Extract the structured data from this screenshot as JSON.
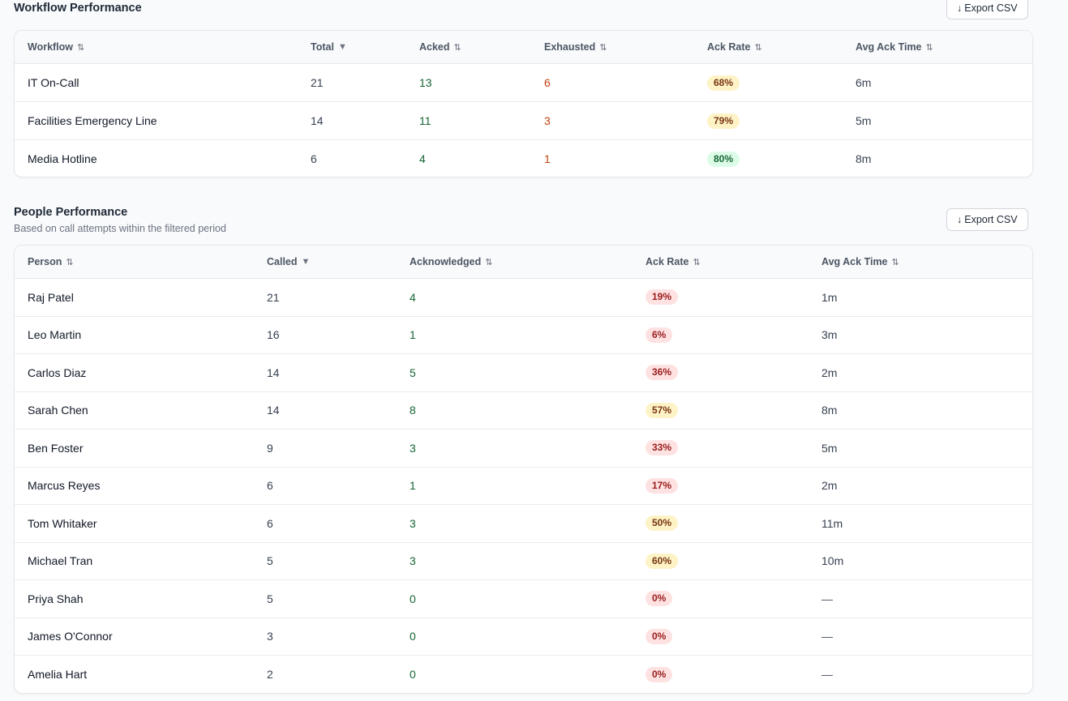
{
  "workflow": {
    "title": "Workflow Performance",
    "export_label": "Export CSV",
    "export_icon": "arrow-down-icon",
    "columns": [
      {
        "label": "Workflow",
        "sort": "⇅"
      },
      {
        "label": "Total",
        "sort": "▼"
      },
      {
        "label": "Acked",
        "sort": "⇅"
      },
      {
        "label": "Exhausted",
        "sort": "⇅"
      },
      {
        "label": "Ack Rate",
        "sort": "⇅"
      },
      {
        "label": "Avg Ack Time",
        "sort": "⇅"
      }
    ],
    "rows": [
      {
        "name": "IT On-Call",
        "total": "21",
        "acked": "13",
        "exhausted": "6",
        "rate": "68%",
        "rate_level": "yellow",
        "avg": "6m"
      },
      {
        "name": "Facilities Emergency Line",
        "total": "14",
        "acked": "11",
        "exhausted": "3",
        "rate": "79%",
        "rate_level": "yellow",
        "avg": "5m"
      },
      {
        "name": "Media Hotline",
        "total": "6",
        "acked": "4",
        "exhausted": "1",
        "rate": "80%",
        "rate_level": "green",
        "avg": "8m"
      }
    ]
  },
  "people": {
    "title": "People Performance",
    "subtitle": "Based on call attempts within the filtered period",
    "export_label": "Export CSV",
    "export_icon": "arrow-down-icon",
    "columns": [
      {
        "label": "Person",
        "sort": "⇅"
      },
      {
        "label": "Called",
        "sort": "▼"
      },
      {
        "label": "Acknowledged",
        "sort": "⇅"
      },
      {
        "label": "Ack Rate",
        "sort": "⇅"
      },
      {
        "label": "Avg Ack Time",
        "sort": "⇅"
      }
    ],
    "rows": [
      {
        "name": "Raj Patel",
        "called": "21",
        "ack": "4",
        "rate": "19%",
        "rate_level": "red",
        "avg": "1m"
      },
      {
        "name": "Leo Martin",
        "called": "16",
        "ack": "1",
        "rate": "6%",
        "rate_level": "red",
        "avg": "3m"
      },
      {
        "name": "Carlos Diaz",
        "called": "14",
        "ack": "5",
        "rate": "36%",
        "rate_level": "red",
        "avg": "2m"
      },
      {
        "name": "Sarah Chen",
        "called": "14",
        "ack": "8",
        "rate": "57%",
        "rate_level": "yellow",
        "avg": "8m"
      },
      {
        "name": "Ben Foster",
        "called": "9",
        "ack": "3",
        "rate": "33%",
        "rate_level": "red",
        "avg": "5m"
      },
      {
        "name": "Marcus Reyes",
        "called": "6",
        "ack": "1",
        "rate": "17%",
        "rate_level": "red",
        "avg": "2m"
      },
      {
        "name": "Tom Whitaker",
        "called": "6",
        "ack": "3",
        "rate": "50%",
        "rate_level": "yellow",
        "avg": "11m"
      },
      {
        "name": "Michael Tran",
        "called": "5",
        "ack": "3",
        "rate": "60%",
        "rate_level": "yellow",
        "avg": "10m"
      },
      {
        "name": "Priya Shah",
        "called": "5",
        "ack": "0",
        "rate": "0%",
        "rate_level": "red",
        "avg": "—"
      },
      {
        "name": "James O'Connor",
        "called": "3",
        "ack": "0",
        "rate": "0%",
        "rate_level": "red",
        "avg": "—"
      },
      {
        "name": "Amelia Hart",
        "called": "2",
        "ack": "0",
        "rate": "0%",
        "rate_level": "red",
        "avg": "—"
      }
    ]
  }
}
